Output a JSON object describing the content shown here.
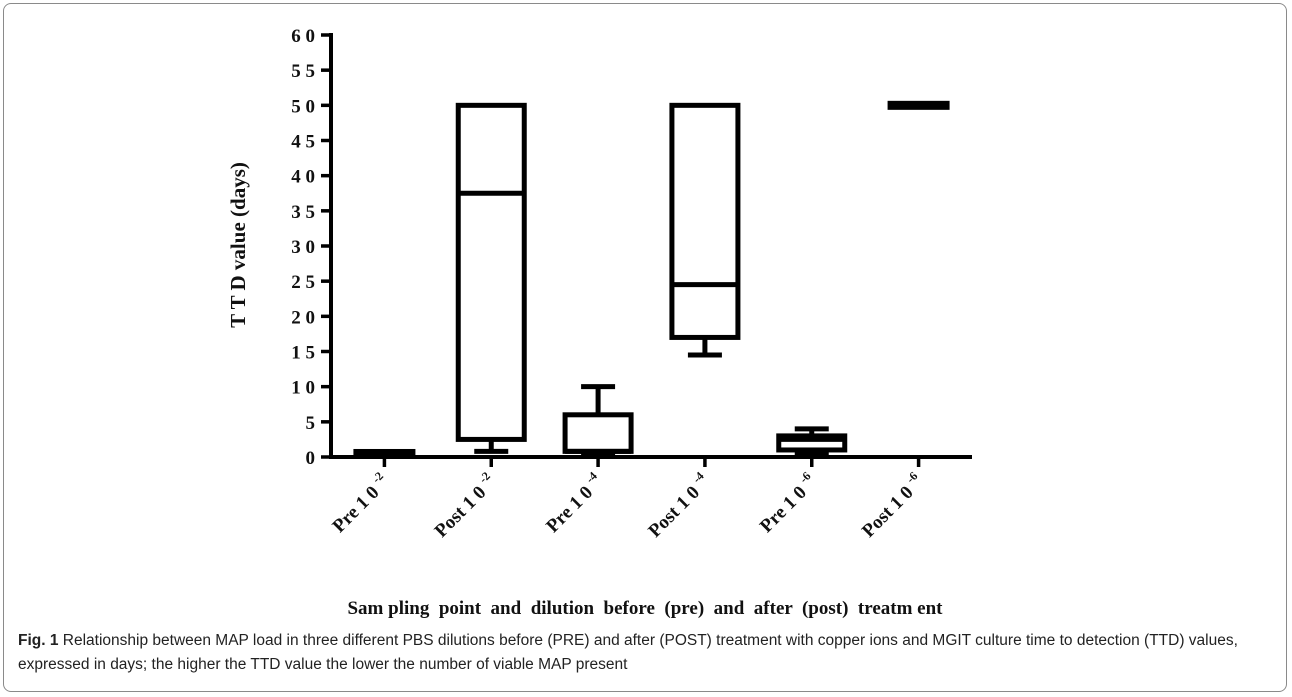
{
  "chart_data": {
    "type": "box",
    "title": "",
    "ylabel": "T T D  value  (days)",
    "xlabel": "Sam pling  point  and  dilution  before  (pre)  and  after  (post)  treatm ent",
    "ylim": [
      0,
      60
    ],
    "yticks": [
      0,
      5,
      10,
      15,
      20,
      25,
      30,
      35,
      40,
      45,
      50,
      55,
      60
    ],
    "ytick_labels": [
      "0",
      "5",
      "1 0",
      "1 5",
      "2 0",
      "2 5",
      "3 0",
      "3 5",
      "4 0",
      "4 5",
      "5 0",
      "5 5",
      "6 0"
    ],
    "grid": false,
    "categories": [
      {
        "base": "Pre 1 0",
        "exp": "-2"
      },
      {
        "base": "Post 1 0",
        "exp": "-2"
      },
      {
        "base": "Pre 1 0",
        "exp": "-4"
      },
      {
        "base": "Post 1 0",
        "exp": "-4"
      },
      {
        "base": "Pre 1 0",
        "exp": "-6"
      },
      {
        "base": "Post 1 0",
        "exp": "-6"
      }
    ],
    "boxes": [
      {
        "min": 0.5,
        "q1": 0.5,
        "median": 0.5,
        "q3": 0.5,
        "max": 0.5
      },
      {
        "min": 0.8,
        "q1": 2.5,
        "median": 37.5,
        "q3": 50,
        "max": 50
      },
      {
        "min": 0.5,
        "q1": 0.8,
        "median": 0.8,
        "q3": 6,
        "max": 10
      },
      {
        "min": 14.5,
        "q1": 17,
        "median": 24.5,
        "q3": 50,
        "max": 50
      },
      {
        "min": 0.5,
        "q1": 1,
        "median": 2.5,
        "q3": 3,
        "max": 4
      },
      {
        "min": 50,
        "q1": 50,
        "median": 50,
        "q3": 50,
        "max": 50
      }
    ]
  },
  "caption": {
    "label": "Fig. 1",
    "text": " Relationship between MAP load in three different PBS dilutions before (PRE) and after (POST) treatment with copper ions and MGIT culture time to detection (TTD) values, expressed in days; the higher the TTD value the lower the number of viable MAP present"
  }
}
